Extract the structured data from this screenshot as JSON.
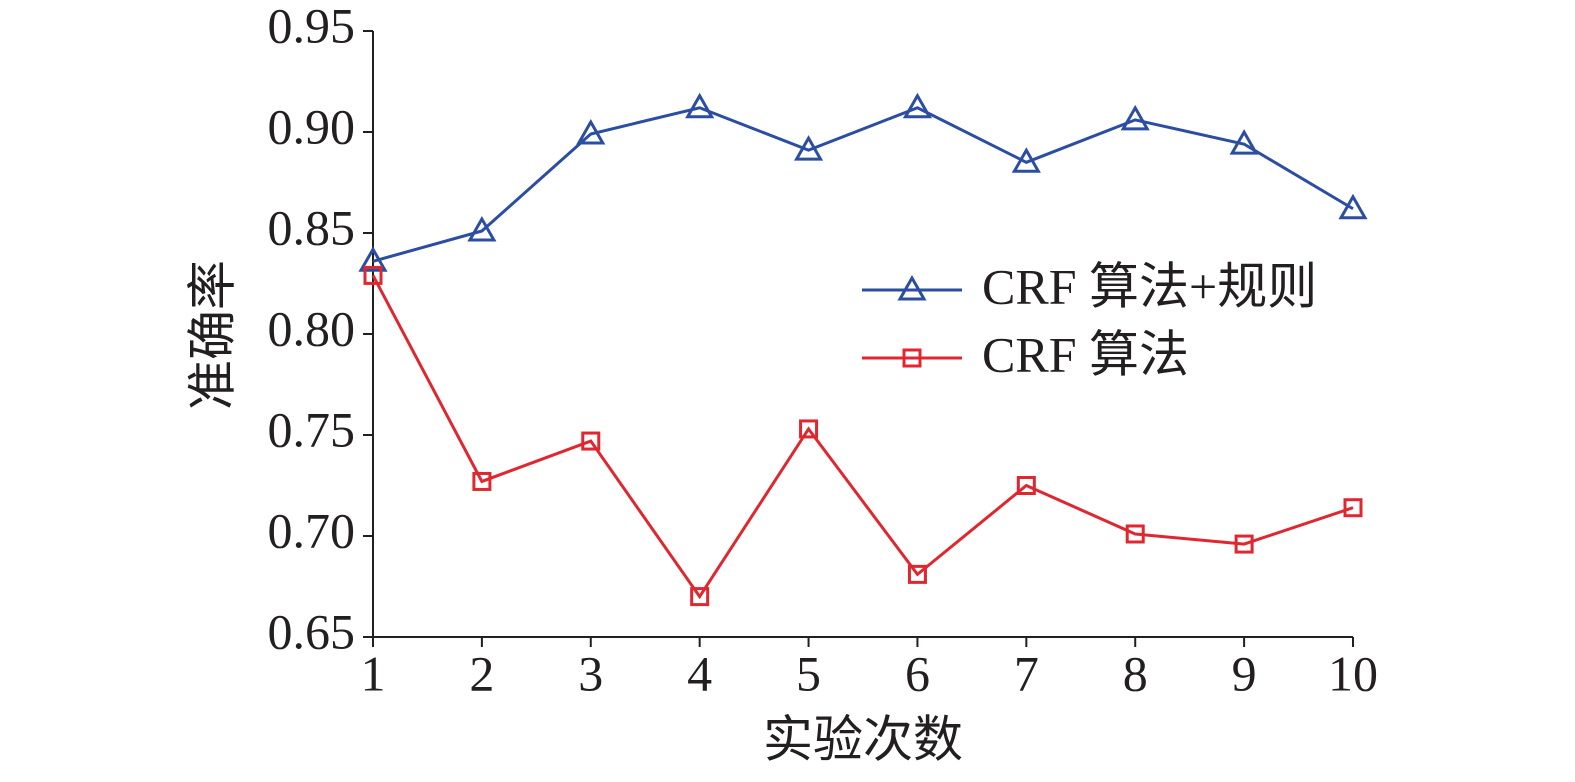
{
  "chart_data": {
    "type": "line",
    "x_label": "实验次数",
    "y_label": "准确率",
    "x": [
      1,
      2,
      3,
      4,
      5,
      6,
      7,
      8,
      9,
      10
    ],
    "series": [
      {
        "name": "CRF 算法+规则",
        "color": "#2b4ea2",
        "marker": "triangle",
        "values": [
          0.836,
          0.851,
          0.899,
          0.912,
          0.891,
          0.912,
          0.885,
          0.906,
          0.894,
          0.862
        ]
      },
      {
        "name": "CRF 算法",
        "color": "#e0262f",
        "marker": "square",
        "values": [
          0.829,
          0.727,
          0.747,
          0.67,
          0.753,
          0.681,
          0.725,
          0.701,
          0.696,
          0.714
        ]
      }
    ],
    "xlim": [
      1,
      10
    ],
    "xticks": [
      1,
      2,
      3,
      4,
      5,
      6,
      7,
      8,
      9,
      10
    ],
    "ylim": [
      0.65,
      0.95
    ],
    "yticks": [
      0.65,
      {
        "value": 0.7,
        "label": "0.70"
      },
      0.75,
      {
        "value": 0.8,
        "label": "0.80"
      },
      0.85,
      {
        "value": 0.9,
        "label": "0.90"
      },
      0.95
    ],
    "grid": false,
    "legend": "right"
  }
}
